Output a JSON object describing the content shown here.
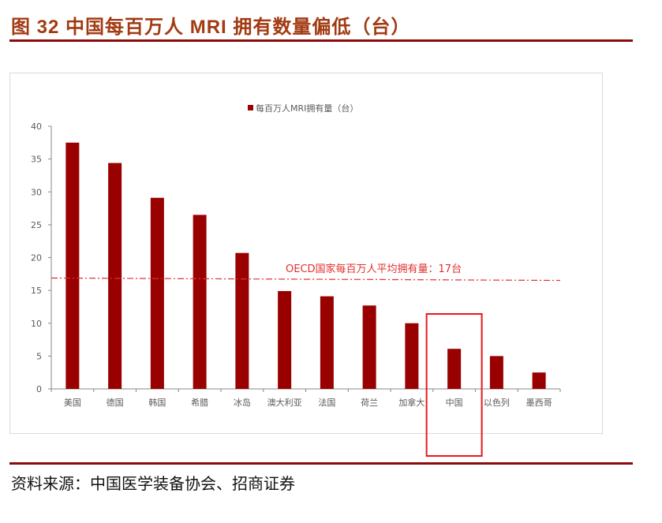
{
  "title": "图 32 中国每百万人 MRI 拥有数量偏低（台）",
  "source": "资料来源：中国医学装备协会、招商证券",
  "chart_data": {
    "type": "bar",
    "legend": "每百万人MRI拥有量（台）",
    "legend_position": "top",
    "categories": [
      "美国",
      "德国",
      "韩国",
      "希腊",
      "冰岛",
      "澳大利亚",
      "法国",
      "荷兰",
      "加拿大",
      "中国",
      "以色列",
      "墨西哥"
    ],
    "values": [
      37.5,
      34.4,
      29.1,
      26.5,
      20.7,
      14.9,
      14.1,
      12.7,
      10.0,
      6.1,
      5.0,
      2.5
    ],
    "ylim": [
      0,
      40
    ],
    "yticks": [
      0,
      5,
      10,
      15,
      20,
      25,
      30,
      35,
      40
    ],
    "grid": false,
    "bar_color": "#990000",
    "reference_line": {
      "value": 17,
      "label": "OECD国家每百万人平均拥有量：17台",
      "color": "#e03030"
    },
    "highlight": {
      "category": "中国",
      "color": "#e8191a"
    }
  }
}
